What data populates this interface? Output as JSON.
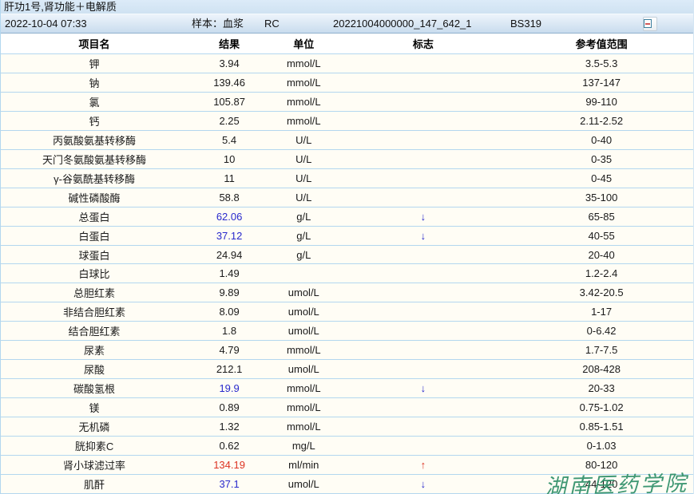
{
  "title_bar": {
    "title": "肝功1号,肾功能＋电解质"
  },
  "info_bar": {
    "datetime": "2022-10-04 07:33",
    "sample_label": "样本：血浆",
    "sample_mode": "RC",
    "barcode": "20221004000000_147_642_1",
    "instrument": "BS319"
  },
  "table": {
    "headers": [
      "项目名",
      "结果",
      "单位",
      "标志",
      "参考值范围"
    ],
    "rows": [
      {
        "name": "钾",
        "result": "3.94",
        "unit": "mmol/L",
        "flag": "",
        "range": "3.5-5.3",
        "status": "normal"
      },
      {
        "name": "钠",
        "result": "139.46",
        "unit": "mmol/L",
        "flag": "",
        "range": "137-147",
        "status": "normal"
      },
      {
        "name": "氯",
        "result": "105.87",
        "unit": "mmol/L",
        "flag": "",
        "range": "99-110",
        "status": "normal"
      },
      {
        "name": "钙",
        "result": "2.25",
        "unit": "mmol/L",
        "flag": "",
        "range": "2.11-2.52",
        "status": "normal"
      },
      {
        "name": "丙氨酸氨基转移酶",
        "result": "5.4",
        "unit": "U/L",
        "flag": "",
        "range": "0-40",
        "status": "normal"
      },
      {
        "name": "天门冬氨酸氨基转移酶",
        "result": "10",
        "unit": "U/L",
        "flag": "",
        "range": "0-35",
        "status": "normal"
      },
      {
        "name": "γ-谷氨酰基转移酶",
        "result": "11",
        "unit": "U/L",
        "flag": "",
        "range": "0-45",
        "status": "normal"
      },
      {
        "name": "碱性磷酸酶",
        "result": "58.8",
        "unit": "U/L",
        "flag": "",
        "range": "35-100",
        "status": "normal"
      },
      {
        "name": "总蛋白",
        "result": "62.06",
        "unit": "g/L",
        "flag": "↓",
        "range": "65-85",
        "status": "low"
      },
      {
        "name": "白蛋白",
        "result": "37.12",
        "unit": "g/L",
        "flag": "↓",
        "range": "40-55",
        "status": "low"
      },
      {
        "name": "球蛋白",
        "result": "24.94",
        "unit": "g/L",
        "flag": "",
        "range": "20-40",
        "status": "normal"
      },
      {
        "name": "白球比",
        "result": "1.49",
        "unit": "",
        "flag": "",
        "range": "1.2-2.4",
        "status": "normal"
      },
      {
        "name": "总胆红素",
        "result": "9.89",
        "unit": "umol/L",
        "flag": "",
        "range": "3.42-20.5",
        "status": "normal"
      },
      {
        "name": "非结合胆红素",
        "result": "8.09",
        "unit": "umol/L",
        "flag": "",
        "range": "1-17",
        "status": "normal"
      },
      {
        "name": "结合胆红素",
        "result": "1.8",
        "unit": "umol/L",
        "flag": "",
        "range": "0-6.42",
        "status": "normal"
      },
      {
        "name": "尿素",
        "result": "4.79",
        "unit": "mmol/L",
        "flag": "",
        "range": "1.7-7.5",
        "status": "normal"
      },
      {
        "name": "尿酸",
        "result": "212.1",
        "unit": "umol/L",
        "flag": "",
        "range": "208-428",
        "status": "normal"
      },
      {
        "name": "碳酸氢根",
        "result": "19.9",
        "unit": "mmol/L",
        "flag": "↓",
        "range": "20-33",
        "status": "low"
      },
      {
        "name": "镁",
        "result": "0.89",
        "unit": "mmol/L",
        "flag": "",
        "range": "0.75-1.02",
        "status": "normal"
      },
      {
        "name": "无机磷",
        "result": "1.32",
        "unit": "mmol/L",
        "flag": "",
        "range": "0.85-1.51",
        "status": "normal"
      },
      {
        "name": "胱抑素C",
        "result": "0.62",
        "unit": "mg/L",
        "flag": "",
        "range": "0-1.03",
        "status": "normal"
      },
      {
        "name": "肾小球滤过率",
        "result": "134.19",
        "unit": "ml/min",
        "flag": "↑",
        "range": "80-120",
        "status": "high"
      },
      {
        "name": "肌酐",
        "result": "37.1",
        "unit": "umol/L",
        "flag": "↓",
        "range": "44-120",
        "status": "low"
      }
    ]
  },
  "watermark": "湖南医药学院",
  "colors": {
    "low_value": "#2929cc",
    "high_value": "#dd3322",
    "row_separator": "#b3d7ef",
    "watermark": "#2e8f68",
    "info_bar_bg": "#d5e5f3"
  }
}
